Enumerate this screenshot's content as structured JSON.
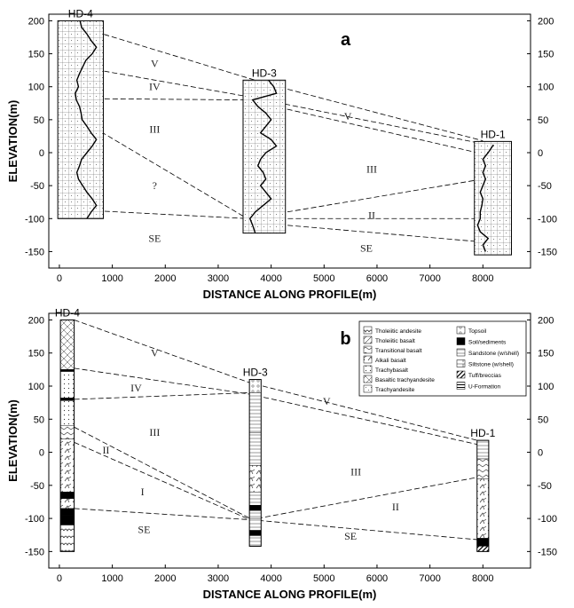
{
  "chart_data": [
    {
      "type": "profile",
      "panel_label": "a",
      "xlabel": "DISTANCE ALONG PROFILE(m)",
      "ylabel": "ELEVATION(m)",
      "xlim": [
        -200,
        8900
      ],
      "ylim": [
        -175,
        210
      ],
      "xticks": [
        0,
        1000,
        2000,
        3000,
        4000,
        5000,
        6000,
        7000,
        8000
      ],
      "yticks": [
        -150,
        -100,
        -50,
        0,
        50,
        100,
        150,
        200
      ],
      "right_axis": true,
      "wells": [
        {
          "name": "HD-4",
          "x_center": 400,
          "halfwidth": 430,
          "top": 200,
          "bottom": -100,
          "log": [
            [
              200,
              390
            ],
            [
              190,
              420
            ],
            [
              180,
              520
            ],
            [
              170,
              600
            ],
            [
              160,
              700
            ],
            [
              150,
              620
            ],
            [
              140,
              500
            ],
            [
              130,
              440
            ],
            [
              120,
              380
            ],
            [
              110,
              330
            ],
            [
              100,
              360
            ],
            [
              90,
              300
            ],
            [
              80,
              320
            ],
            [
              70,
              380
            ],
            [
              60,
              410
            ],
            [
              50,
              430
            ],
            [
              40,
              520
            ],
            [
              30,
              600
            ],
            [
              20,
              700
            ],
            [
              10,
              620
            ],
            [
              0,
              520
            ],
            [
              -10,
              420
            ],
            [
              -20,
              380
            ],
            [
              -30,
              330
            ],
            [
              -40,
              360
            ],
            [
              -50,
              440
            ],
            [
              -60,
              520
            ],
            [
              -70,
              620
            ],
            [
              -80,
              700
            ],
            [
              -90,
              600
            ],
            [
              -100,
              520
            ]
          ]
        },
        {
          "name": "HD-3",
          "x_center": 3870,
          "halfwidth": 400,
          "top": 110,
          "bottom": -122,
          "log": [
            [
              110,
              3950
            ],
            [
              100,
              4050
            ],
            [
              90,
              4100
            ],
            [
              80,
              3650
            ],
            [
              70,
              3750
            ],
            [
              60,
              3900
            ],
            [
              50,
              4000
            ],
            [
              40,
              3900
            ],
            [
              30,
              3800
            ],
            [
              20,
              4000
            ],
            [
              10,
              4100
            ],
            [
              0,
              3900
            ],
            [
              -10,
              3800
            ],
            [
              -20,
              3750
            ],
            [
              -30,
              3850
            ],
            [
              -40,
              3900
            ],
            [
              -50,
              3800
            ],
            [
              -60,
              3900
            ],
            [
              -70,
              4000
            ],
            [
              -80,
              3850
            ],
            [
              -90,
              3700
            ],
            [
              -100,
              3600
            ],
            [
              -110,
              3650
            ],
            [
              -122,
              3700
            ]
          ]
        },
        {
          "name": "HD-1",
          "x_center": 8190,
          "halfwidth": 350,
          "top": 17,
          "bottom": -155,
          "log": [
            [
              12,
              8200
            ],
            [
              0,
              8100
            ],
            [
              -10,
              8000
            ],
            [
              -20,
              8050
            ],
            [
              -30,
              8000
            ],
            [
              -40,
              8050
            ],
            [
              -50,
              8000
            ],
            [
              -60,
              7950
            ],
            [
              -70,
              8000
            ],
            [
              -80,
              7980
            ],
            [
              -90,
              7950
            ],
            [
              -100,
              7950
            ],
            [
              -110,
              7900
            ],
            [
              -120,
              7950
            ],
            [
              -130,
              8100
            ],
            [
              -140,
              8000
            ],
            [
              -150,
              8050
            ]
          ]
        }
      ],
      "correlations": [
        [
          [
            410,
            190
          ],
          [
            3900,
            105
          ],
          [
            8000,
            18
          ]
        ],
        [
          [
            400,
            130
          ],
          [
            3560,
            85
          ],
          [
            7900,
            15
          ]
        ],
        [
          [
            400,
            82
          ],
          [
            3540,
            80
          ],
          [
            8000,
            -2
          ]
        ],
        [
          [
            400,
            50
          ],
          [
            3550,
            -100
          ]
        ],
        [
          [
            400,
            -87
          ],
          [
            3560,
            -100
          ],
          [
            8000,
            -40
          ]
        ],
        [
          [
            3560,
            -100
          ],
          [
            7920,
            -100
          ]
        ],
        [
          [
            3560,
            -105
          ],
          [
            7930,
            -135
          ]
        ]
      ],
      "zone_labels": [
        {
          "text": "V",
          "x": 1800,
          "y": 130
        },
        {
          "text": "IV",
          "x": 1800,
          "y": 95
        },
        {
          "text": "III",
          "x": 1800,
          "y": 30
        },
        {
          "text": "?",
          "x": 1800,
          "y": -55
        },
        {
          "text": "SE",
          "x": 1800,
          "y": -135
        },
        {
          "text": "V",
          "x": 5450,
          "y": 50
        },
        {
          "text": "III",
          "x": 5900,
          "y": -30
        },
        {
          "text": "II",
          "x": 5900,
          "y": -100
        },
        {
          "text": "SE",
          "x": 5800,
          "y": -150
        }
      ]
    },
    {
      "type": "profile",
      "panel_label": "b",
      "xlabel": "DISTANCE ALONG PROFILE(m)",
      "ylabel": "ELEVATION(m)",
      "xlim": [
        -200,
        8900
      ],
      "ylim": [
        -175,
        210
      ],
      "xticks": [
        0,
        1000,
        2000,
        3000,
        4000,
        5000,
        6000,
        7000,
        8000
      ],
      "yticks": [
        -150,
        -100,
        -50,
        0,
        50,
        100,
        150,
        200
      ],
      "right_axis": true,
      "wells": [
        {
          "name": "HD-4",
          "x_center": 150,
          "halfwidth": 130,
          "top": 200,
          "bottom": -150,
          "layers": [
            [
              200,
              125,
              "basaltic_trachyandesite"
            ],
            [
              125,
              122,
              "soil"
            ],
            [
              122,
              82,
              "trachybasalt"
            ],
            [
              82,
              78,
              "soil"
            ],
            [
              78,
              40,
              "trachybasalt"
            ],
            [
              40,
              20,
              "transitional"
            ],
            [
              20,
              -60,
              "alkali"
            ],
            [
              -60,
              -70,
              "soil"
            ],
            [
              -70,
              -85,
              "alkali"
            ],
            [
              -85,
              -95,
              "soil"
            ],
            [
              -95,
              -110,
              "soil"
            ],
            [
              -110,
              -150,
              "tholeiitic"
            ]
          ]
        },
        {
          "name": "HD-3",
          "x_center": 3700,
          "halfwidth": 110,
          "top": 110,
          "bottom": -142,
          "layers": [
            [
              110,
              90,
              "topsoil"
            ],
            [
              90,
              30,
              "sandstone"
            ],
            [
              30,
              -20,
              "sandstone"
            ],
            [
              -20,
              -60,
              "alkali"
            ],
            [
              -60,
              -80,
              "sandstone"
            ],
            [
              -80,
              -88,
              "soil"
            ],
            [
              -88,
              -100,
              "sandstone"
            ],
            [
              -100,
              -118,
              "sandstone"
            ],
            [
              -118,
              -126,
              "soil"
            ],
            [
              -126,
              -142,
              "sandstone"
            ]
          ]
        },
        {
          "name": "HD-1",
          "x_center": 8000,
          "halfwidth": 110,
          "top": 18,
          "bottom": -150,
          "layers": [
            [
              18,
              -10,
              "sandstone"
            ],
            [
              -10,
              -40,
              "transitional"
            ],
            [
              -40,
              -130,
              "alkali"
            ],
            [
              -130,
              -142,
              "soil"
            ],
            [
              -142,
              -150,
              "tuff"
            ]
          ]
        }
      ],
      "correlations": [
        [
          [
            280,
            200
          ],
          [
            3600,
            105
          ],
          [
            7890,
            18
          ]
        ],
        [
          [
            280,
            127
          ],
          [
            3580,
            88
          ],
          [
            7890,
            12
          ]
        ],
        [
          [
            280,
            80
          ],
          [
            3600,
            90
          ]
        ],
        [
          [
            280,
            38
          ],
          [
            3600,
            -100
          ]
        ],
        [
          [
            280,
            15
          ],
          [
            3600,
            -102
          ]
        ],
        [
          [
            280,
            -85
          ],
          [
            3610,
            -102
          ],
          [
            7890,
            -38
          ]
        ],
        [
          [
            3610,
            -102
          ],
          [
            7890,
            -132
          ]
        ]
      ],
      "zone_labels": [
        {
          "text": "V",
          "x": 1800,
          "y": 145
        },
        {
          "text": "IV",
          "x": 1450,
          "y": 92
        },
        {
          "text": "III",
          "x": 1800,
          "y": 25
        },
        {
          "text": "II",
          "x": 880,
          "y": -2
        },
        {
          "text": "I",
          "x": 1570,
          "y": -65
        },
        {
          "text": "SE",
          "x": 1600,
          "y": -122
        },
        {
          "text": "V",
          "x": 5050,
          "y": 72
        },
        {
          "text": "III",
          "x": 5600,
          "y": -35
        },
        {
          "text": "II",
          "x": 6350,
          "y": -88
        },
        {
          "text": "SE",
          "x": 5500,
          "y": -132
        }
      ],
      "legend": {
        "position": "top-right",
        "col1": [
          "Tholeiitic andesite",
          "Tholeiitic basalt",
          "Transitional basalt",
          "Alkali basalt",
          "Trachybasalt",
          "Basaltic trachyandesite",
          "Trachyandesite"
        ],
        "col1_keys": [
          "tholeiitic",
          "tholeiitic_basalt",
          "transitional",
          "alkali",
          "trachybasalt",
          "basaltic_trachyandesite",
          "trachyandesite"
        ],
        "col2": [
          "Topsoil",
          "Soil/sediments",
          "Sandstone (w/shell)",
          "Siltstone (w/shell)",
          "Tuff/breccias",
          "U-Formation"
        ],
        "col2_keys": [
          "topsoil",
          "soil",
          "sandstone",
          "siltstone",
          "tuff",
          "uform"
        ]
      }
    }
  ]
}
